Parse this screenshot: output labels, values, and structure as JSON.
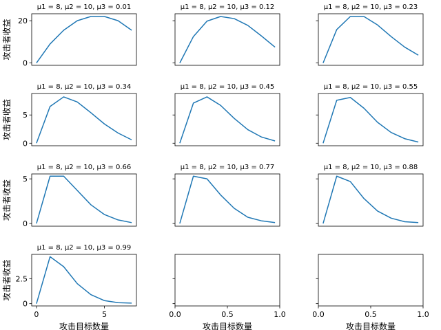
{
  "figure": {
    "ylabel": "攻击者收益",
    "xlabel": "攻击目标数量"
  },
  "chart_data": [
    {
      "type": "line",
      "title": "μ1 = 8, μ2 = 10, μ3 = 0.01",
      "x": [
        0,
        1,
        2,
        3,
        4,
        5,
        6,
        7
      ],
      "values": [
        0,
        9,
        15.5,
        20,
        22,
        22,
        20,
        15.5
      ],
      "xlim": [
        -0.35,
        7.35
      ],
      "ylim": [
        -1.1,
        23.3
      ],
      "yticks": [
        0,
        20
      ],
      "xticks": [],
      "xticklabels": false,
      "yticklabels": true,
      "ylabel": "攻击者收益",
      "color": "#1f77b4"
    },
    {
      "type": "line",
      "title": "μ1 = 8, μ2 = 10, μ3 = 0.12",
      "x": [
        0,
        1,
        2,
        3,
        4,
        5,
        6,
        7
      ],
      "values": [
        0,
        12.5,
        19.8,
        22,
        21,
        17.8,
        12.8,
        7.5
      ],
      "xlim": [
        -0.35,
        7.35
      ],
      "ylim": [
        -1.1,
        23.3
      ],
      "yticks": [
        0,
        20
      ],
      "xticks": [],
      "xticklabels": false,
      "yticklabels": false,
      "color": "#1f77b4"
    },
    {
      "type": "line",
      "title": "μ1 = 8, μ2 = 10, μ3 = 0.23",
      "x": [
        0,
        1,
        2,
        3,
        4,
        5,
        6,
        7
      ],
      "values": [
        0,
        15.8,
        22,
        22,
        18,
        12.5,
        7.5,
        3.7
      ],
      "xlim": [
        -0.35,
        7.35
      ],
      "ylim": [
        -1.1,
        23.3
      ],
      "yticks": [
        0,
        20
      ],
      "xticks": [],
      "xticklabels": false,
      "yticklabels": false,
      "color": "#1f77b4"
    },
    {
      "type": "line",
      "title": "μ1 = 8, μ2 = 10, μ3 = 0.34",
      "x": [
        0,
        1,
        2,
        3,
        4,
        5,
        6,
        7
      ],
      "values": [
        0,
        6.5,
        8.2,
        7.3,
        5.4,
        3.4,
        1.8,
        0.6
      ],
      "xlim": [
        -0.35,
        7.35
      ],
      "ylim": [
        -0.45,
        8.8
      ],
      "yticks": [
        0,
        5
      ],
      "xticks": [],
      "xticklabels": false,
      "yticklabels": true,
      "ylabel": "攻击者收益",
      "color": "#1f77b4"
    },
    {
      "type": "line",
      "title": "μ1 = 8, μ2 = 10, μ3 = 0.45",
      "x": [
        0,
        1,
        2,
        3,
        4,
        5,
        6,
        7
      ],
      "values": [
        0,
        7.1,
        8.2,
        6.7,
        4.4,
        2.4,
        1.1,
        0.4
      ],
      "xlim": [
        -0.35,
        7.35
      ],
      "ylim": [
        -0.45,
        8.8
      ],
      "yticks": [
        0,
        5
      ],
      "xticks": [],
      "xticklabels": false,
      "yticklabels": false,
      "color": "#1f77b4"
    },
    {
      "type": "line",
      "title": "μ1 = 8, μ2 = 10, μ3 = 0.55",
      "x": [
        0,
        1,
        2,
        3,
        4,
        5,
        6,
        7
      ],
      "values": [
        0,
        7.6,
        8.1,
        6.2,
        3.7,
        1.9,
        0.8,
        0.2
      ],
      "xlim": [
        -0.35,
        7.35
      ],
      "ylim": [
        -0.45,
        8.8
      ],
      "yticks": [
        0,
        5
      ],
      "xticks": [],
      "xticklabels": false,
      "yticklabels": false,
      "color": "#1f77b4"
    },
    {
      "type": "line",
      "title": "μ1 = 8, μ2 = 10, μ3 = 0.66",
      "x": [
        0,
        1,
        2,
        3,
        4,
        5,
        6,
        7
      ],
      "values": [
        0,
        5.3,
        5.3,
        3.7,
        2.1,
        1.0,
        0.4,
        0.1
      ],
      "xlim": [
        -0.35,
        7.35
      ],
      "ylim": [
        -0.3,
        5.55
      ],
      "yticks": [
        0,
        5
      ],
      "xticks": [],
      "xticklabels": false,
      "yticklabels": true,
      "ylabel": "攻击者收益",
      "color": "#1f77b4"
    },
    {
      "type": "line",
      "title": "μ1 = 8, μ2 = 10, μ3 = 0.77",
      "x": [
        0,
        1,
        2,
        3,
        4,
        5,
        6,
        7
      ],
      "values": [
        0,
        5.3,
        5.0,
        3.2,
        1.7,
        0.7,
        0.3,
        0.1
      ],
      "xlim": [
        -0.35,
        7.35
      ],
      "ylim": [
        -0.3,
        5.55
      ],
      "yticks": [
        0,
        5
      ],
      "xticks": [],
      "xticklabels": false,
      "yticklabels": false,
      "color": "#1f77b4"
    },
    {
      "type": "line",
      "title": "μ1 = 8, μ2 = 10, μ3 = 0.88",
      "x": [
        0,
        1,
        2,
        3,
        4,
        5,
        6,
        7
      ],
      "values": [
        0,
        5.3,
        4.7,
        2.8,
        1.4,
        0.6,
        0.2,
        0.1
      ],
      "xlim": [
        -0.35,
        7.35
      ],
      "ylim": [
        -0.3,
        5.55
      ],
      "yticks": [
        0,
        5
      ],
      "xticks": [],
      "xticklabels": false,
      "yticklabels": false,
      "color": "#1f77b4"
    },
    {
      "type": "line",
      "title": "μ1 = 8, μ2 = 10, μ3 = 0.99",
      "x": [
        0,
        1,
        2,
        3,
        4,
        5,
        6,
        7
      ],
      "values": [
        0,
        4.7,
        3.7,
        2.0,
        0.9,
        0.3,
        0.1,
        0.05
      ],
      "xlim": [
        -0.35,
        7.35
      ],
      "ylim": [
        -0.23,
        4.93
      ],
      "yticks": [
        0,
        2.5
      ],
      "xticks": [
        0,
        5
      ],
      "xticklabels": true,
      "yticklabels": true,
      "ylabel": "攻击者收益",
      "xlabel": "攻击目标数量",
      "color": "#1f77b4"
    },
    {
      "type": "line",
      "title": "",
      "x": [],
      "values": [],
      "xlim": [
        0,
        1
      ],
      "ylim": [
        -0.23,
        4.93
      ],
      "yticks": [
        0,
        2.5
      ],
      "xticks": [
        0,
        0.5,
        1
      ],
      "xtick_text": [
        "0.0",
        "0.5",
        "1.0"
      ],
      "xticklabels": true,
      "yticklabels": false,
      "xlabel": "攻击目标数量",
      "color": "#1f77b4"
    },
    {
      "type": "line",
      "title": "",
      "x": [],
      "values": [],
      "xlim": [
        0,
        1
      ],
      "ylim": [
        -0.23,
        4.93
      ],
      "yticks": [
        0,
        2.5
      ],
      "xticks": [
        0,
        0.5,
        1
      ],
      "xtick_text": [
        "0.0",
        "0.5",
        "1.0"
      ],
      "xticklabels": true,
      "yticklabels": false,
      "xlabel": "攻击目标数量",
      "color": "#1f77b4"
    }
  ]
}
